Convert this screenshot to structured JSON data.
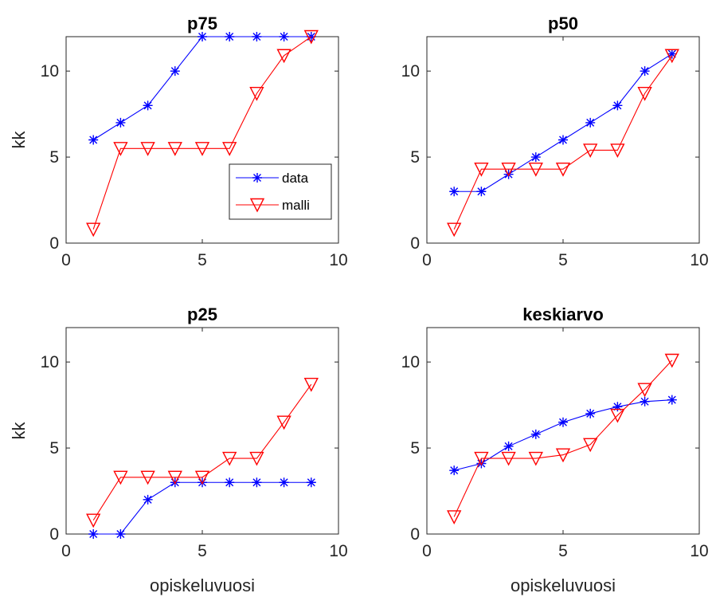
{
  "chart_data": [
    {
      "type": "line",
      "title": "p75",
      "ylabel": "kk",
      "xlabel": "",
      "xlim": [
        0,
        10
      ],
      "ylim": [
        0,
        12
      ],
      "xticks": [
        "0",
        "5",
        "10"
      ],
      "yticks": [
        "0",
        "5",
        "10"
      ],
      "x": [
        1,
        2,
        3,
        4,
        5,
        6,
        7,
        8,
        9
      ],
      "legend": {
        "position": "lower-right",
        "entries": [
          "data",
          "malli"
        ]
      },
      "series": [
        {
          "name": "data",
          "color": "#0000ff",
          "marker": "asterisk",
          "values": [
            6,
            7,
            8,
            10,
            12,
            12,
            12,
            12,
            12
          ]
        },
        {
          "name": "malli",
          "color": "#ff0000",
          "marker": "triangle-down",
          "values": [
            0.8,
            5.5,
            5.5,
            5.5,
            5.5,
            5.5,
            8.7,
            10.9,
            12
          ]
        }
      ]
    },
    {
      "type": "line",
      "title": "p50",
      "ylabel": "",
      "xlabel": "",
      "xlim": [
        0,
        10
      ],
      "ylim": [
        0,
        12
      ],
      "xticks": [
        "0",
        "5",
        "10"
      ],
      "yticks": [
        "0",
        "5",
        "10"
      ],
      "x": [
        1,
        2,
        3,
        4,
        5,
        6,
        7,
        8,
        9
      ],
      "series": [
        {
          "color": "#0000ff",
          "marker": "asterisk",
          "values": [
            3,
            3,
            4,
            5,
            6,
            7,
            8,
            10,
            11
          ]
        },
        {
          "color": "#ff0000",
          "marker": "triangle-down",
          "values": [
            0.8,
            4.3,
            4.3,
            4.3,
            4.3,
            5.4,
            5.4,
            8.7,
            10.9
          ]
        }
      ]
    },
    {
      "type": "line",
      "title": "p25",
      "ylabel": "kk",
      "xlabel": "opiskeluvuosi",
      "xlim": [
        0,
        10
      ],
      "ylim": [
        0,
        12
      ],
      "xticks": [
        "0",
        "5",
        "10"
      ],
      "yticks": [
        "0",
        "5",
        "10"
      ],
      "x": [
        1,
        2,
        3,
        4,
        5,
        6,
        7,
        8,
        9
      ],
      "series": [
        {
          "color": "#0000ff",
          "marker": "asterisk",
          "values": [
            0,
            0,
            2,
            3,
            3,
            3,
            3,
            3,
            3
          ]
        },
        {
          "color": "#ff0000",
          "marker": "triangle-down",
          "values": [
            0.8,
            3.3,
            3.3,
            3.3,
            3.3,
            4.4,
            4.4,
            6.5,
            8.7
          ]
        }
      ]
    },
    {
      "type": "line",
      "title": "keskiarvo",
      "ylabel": "",
      "xlabel": "opiskeluvuosi",
      "xlim": [
        0,
        10
      ],
      "ylim": [
        0,
        12
      ],
      "xticks": [
        "0",
        "5",
        "10"
      ],
      "yticks": [
        "0",
        "5",
        "10"
      ],
      "x": [
        1,
        2,
        3,
        4,
        5,
        6,
        7,
        8,
        9
      ],
      "series": [
        {
          "color": "#0000ff",
          "marker": "asterisk",
          "values": [
            3.7,
            4.1,
            5.1,
            5.8,
            6.5,
            7.0,
            7.4,
            7.7,
            7.8
          ]
        },
        {
          "color": "#ff0000",
          "marker": "triangle-down",
          "values": [
            1.0,
            4.4,
            4.4,
            4.4,
            4.6,
            5.2,
            6.9,
            8.4,
            10.1
          ]
        }
      ]
    }
  ]
}
